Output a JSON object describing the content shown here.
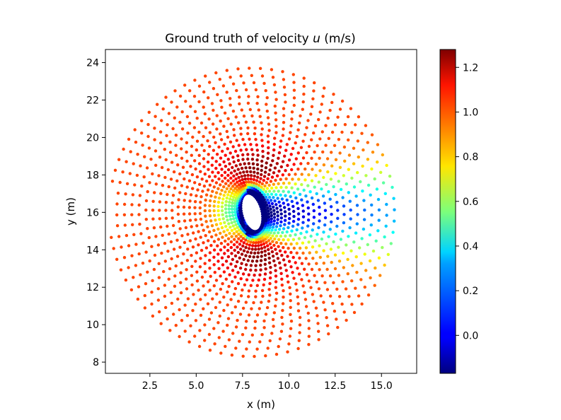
{
  "chart_data": {
    "type": "scatter",
    "title_prefix": "Ground truth of velocity ",
    "title_var": "u",
    "title_suffix": " (m/s)",
    "xlabel": "x (m)",
    "ylabel": "y (m)",
    "xlim": [
      0.1,
      16.9
    ],
    "ylim": [
      7.4,
      24.7
    ],
    "xticks": [
      2.5,
      5.0,
      7.5,
      10.0,
      12.5,
      15.0
    ],
    "xtick_labels": [
      "2.5",
      "5.0",
      "7.5",
      "10.0",
      "12.5",
      "15.0"
    ],
    "yticks": [
      8,
      10,
      12,
      14,
      16,
      18,
      20,
      22,
      24
    ],
    "ytick_labels": [
      "8",
      "10",
      "12",
      "14",
      "16",
      "18",
      "20",
      "22",
      "24"
    ],
    "colorbar": {
      "colormap": "jet",
      "vmin": -0.17,
      "vmax": 1.28,
      "ticks": [
        0.0,
        0.2,
        0.4,
        0.6,
        0.8,
        1.0,
        1.2
      ],
      "tick_labels": [
        "0.0",
        "0.2",
        "0.4",
        "0.6",
        "0.8",
        "1.0",
        "1.2"
      ]
    },
    "field": {
      "description_of_sampling": "points on concentric rings around an elliptic cylinder obstacle",
      "center_x": 8.0,
      "center_y": 16.0,
      "inner_radius_x": 0.55,
      "inner_radius_y": 1.05,
      "ring_count": 28,
      "outer_radius": 7.7,
      "free_stream_u": 1.0,
      "min_u": -0.17,
      "max_u": 1.28
    }
  }
}
